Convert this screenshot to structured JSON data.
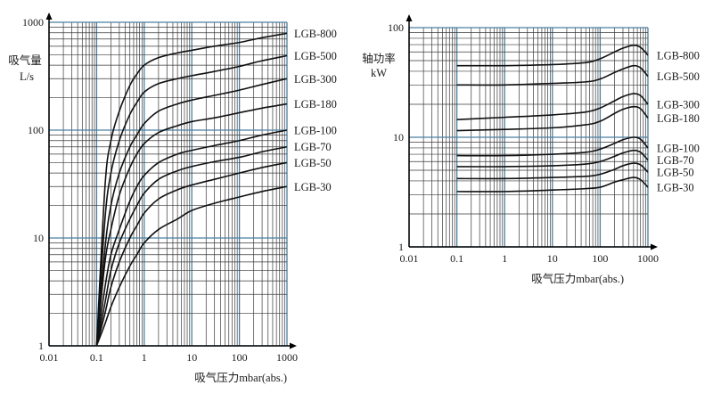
{
  "chart_data": [
    {
      "type": "line",
      "title": "",
      "ylabel": "吸气量",
      "yunit": "L/s",
      "xlabel": "吸气压力mbar(abs.)",
      "xscale": "log",
      "yscale": "log",
      "xlim": [
        0.01,
        1000
      ],
      "ylim": [
        1,
        1000
      ],
      "xticks": [
        "0.01",
        "0.1",
        "1",
        "10",
        "100",
        "1000"
      ],
      "yticks": [
        "1",
        "10",
        "100",
        "1000"
      ],
      "grid": true,
      "series": [
        {
          "name": "LGB-800",
          "x": [
            0.1,
            0.15,
            0.2,
            0.3,
            0.5,
            0.7,
            1,
            2,
            5,
            10,
            30,
            100,
            300,
            1000
          ],
          "y": [
            1,
            30,
            80,
            150,
            260,
            330,
            400,
            470,
            520,
            550,
            600,
            650,
            720,
            790
          ]
        },
        {
          "name": "LGB-500",
          "x": [
            0.1,
            0.15,
            0.2,
            0.3,
            0.5,
            0.7,
            1,
            2,
            5,
            10,
            30,
            100,
            300,
            1000
          ],
          "y": [
            1,
            15,
            40,
            80,
            140,
            180,
            225,
            270,
            300,
            320,
            350,
            390,
            440,
            490
          ]
        },
        {
          "name": "LGB-300",
          "x": [
            0.1,
            0.15,
            0.2,
            0.3,
            0.5,
            0.7,
            1,
            2,
            5,
            10,
            30,
            100,
            300,
            1000
          ],
          "y": [
            1,
            8,
            20,
            40,
            70,
            90,
            115,
            150,
            175,
            190,
            210,
            235,
            265,
            300
          ]
        },
        {
          "name": "LGB-180",
          "x": [
            0.1,
            0.15,
            0.2,
            0.3,
            0.5,
            0.7,
            1,
            2,
            5,
            10,
            30,
            100,
            300,
            1000
          ],
          "y": [
            1,
            6,
            12,
            25,
            45,
            60,
            75,
            95,
            110,
            120,
            130,
            145,
            160,
            175
          ]
        },
        {
          "name": "LGB-100",
          "x": [
            0.1,
            0.15,
            0.2,
            0.3,
            0.5,
            0.7,
            1,
            2,
            5,
            10,
            30,
            100,
            300,
            1000
          ],
          "y": [
            1,
            3.5,
            7,
            12,
            22,
            30,
            38,
            50,
            60,
            65,
            72,
            80,
            90,
            100
          ]
        },
        {
          "name": "LGB-70",
          "x": [
            0.1,
            0.15,
            0.2,
            0.3,
            0.5,
            0.7,
            1,
            2,
            5,
            10,
            30,
            100,
            300,
            1000
          ],
          "y": [
            1,
            2.5,
            5,
            9,
            15,
            20,
            26,
            35,
            42,
            46,
            51,
            56,
            63,
            70
          ]
        },
        {
          "name": "LGB-50",
          "x": [
            0.1,
            0.15,
            0.2,
            0.3,
            0.5,
            0.7,
            1,
            2,
            5,
            10,
            30,
            100,
            300,
            1000
          ],
          "y": [
            1,
            2,
            3.5,
            6,
            10,
            13,
            17,
            23,
            28,
            31,
            35,
            40,
            45,
            50
          ]
        },
        {
          "name": "LGB-30",
          "x": [
            0.1,
            0.15,
            0.2,
            0.3,
            0.5,
            0.7,
            1,
            2,
            5,
            10,
            30,
            100,
            300,
            1000
          ],
          "y": [
            1,
            1.6,
            2.3,
            3.5,
            5.5,
            7,
            9,
            12,
            15,
            18,
            21,
            24,
            27,
            30
          ]
        }
      ]
    },
    {
      "type": "line",
      "title": "",
      "ylabel": "轴功率",
      "yunit": "kW",
      "xlabel": "吸气压力mbar(abs.)",
      "xscale": "log",
      "yscale": "log",
      "xlim": [
        0.01,
        1000
      ],
      "ylim": [
        1,
        100
      ],
      "xticks": [
        "0.01",
        "0.1",
        "1",
        "10",
        "100",
        "1000"
      ],
      "yticks": [
        "1",
        "10",
        "100"
      ],
      "grid": true,
      "series": [
        {
          "name": "LGB-800",
          "x": [
            0.1,
            1,
            10,
            50,
            100,
            200,
            300,
            500,
            700,
            1000
          ],
          "y": [
            45,
            45,
            46,
            48,
            52,
            60,
            65,
            69,
            66,
            56
          ]
        },
        {
          "name": "LGB-500",
          "x": [
            0.1,
            1,
            10,
            50,
            100,
            200,
            300,
            500,
            700,
            1000
          ],
          "y": [
            30,
            30,
            31,
            32,
            34,
            39,
            42,
            45,
            43,
            36
          ]
        },
        {
          "name": "LGB-300",
          "x": [
            0.1,
            1,
            10,
            50,
            100,
            200,
            300,
            500,
            700,
            1000
          ],
          "y": [
            14.5,
            15.2,
            16,
            17,
            18.5,
            21.5,
            23.5,
            25,
            24,
            20
          ]
        },
        {
          "name": "LGB-180",
          "x": [
            0.1,
            1,
            10,
            50,
            100,
            200,
            300,
            500,
            700,
            1000
          ],
          "y": [
            11.5,
            11.8,
            12.2,
            13,
            14,
            16.5,
            18,
            19,
            18.2,
            15
          ]
        },
        {
          "name": "LGB-100",
          "x": [
            0.1,
            1,
            10,
            50,
            100,
            200,
            300,
            500,
            700,
            1000
          ],
          "y": [
            6.8,
            6.8,
            7,
            7.3,
            7.8,
            8.8,
            9.5,
            10,
            9.6,
            8
          ]
        },
        {
          "name": "LGB-70",
          "x": [
            0.1,
            1,
            10,
            50,
            100,
            200,
            300,
            500,
            700,
            1000
          ],
          "y": [
            5.4,
            5.4,
            5.5,
            5.7,
            6,
            6.7,
            7.2,
            7.6,
            7.3,
            6.2
          ]
        },
        {
          "name": "LGB-50",
          "x": [
            0.1,
            1,
            10,
            50,
            100,
            200,
            300,
            500,
            700,
            1000
          ],
          "y": [
            4.2,
            4.2,
            4.3,
            4.4,
            4.6,
            5.1,
            5.5,
            5.8,
            5.6,
            4.8
          ]
        },
        {
          "name": "LGB-30",
          "x": [
            0.1,
            1,
            10,
            50,
            100,
            200,
            300,
            500,
            700,
            1000
          ],
          "y": [
            3.2,
            3.2,
            3.3,
            3.4,
            3.5,
            3.9,
            4.1,
            4.3,
            4.1,
            3.5
          ]
        }
      ]
    }
  ]
}
